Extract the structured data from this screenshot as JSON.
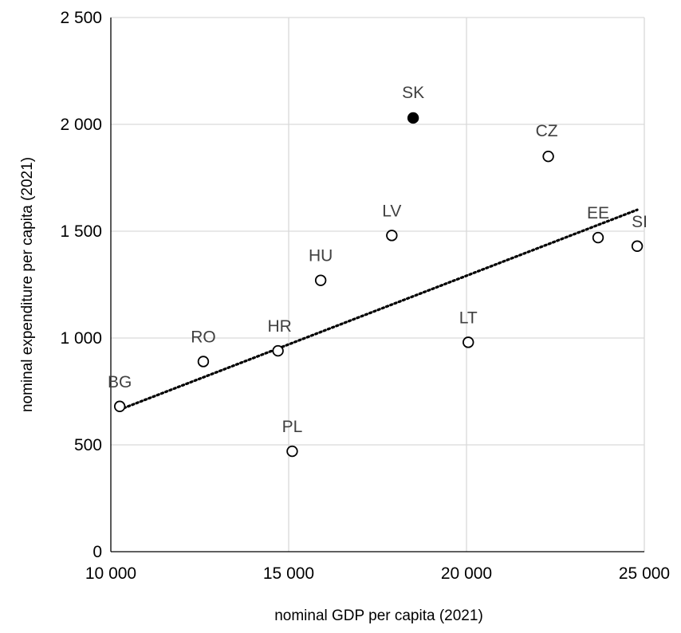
{
  "chart_data": {
    "type": "scatter",
    "xlabel": "nominal GDP per capita (2021)",
    "ylabel": "nominal expenditure per capita (2021)",
    "xlim": [
      10000,
      25000
    ],
    "ylim": [
      0,
      2500
    ],
    "x_ticks": [
      10000,
      15000,
      20000,
      25000
    ],
    "x_tick_labels": [
      "10 000",
      "15 000",
      "20 000",
      "25 000"
    ],
    "y_ticks": [
      0,
      500,
      1000,
      1500,
      2000,
      2500
    ],
    "y_tick_labels": [
      "0",
      "500",
      "1 000",
      "1 500",
      "2 000",
      "2 500"
    ],
    "grid": true,
    "points": [
      {
        "label": "BG",
        "x": 10250,
        "y": 680,
        "highlight": false
      },
      {
        "label": "RO",
        "x": 12600,
        "y": 890,
        "highlight": false
      },
      {
        "label": "HR",
        "x": 14700,
        "y": 940,
        "highlight": false
      },
      {
        "label": "PL",
        "x": 15100,
        "y": 470,
        "highlight": false
      },
      {
        "label": "HU",
        "x": 15900,
        "y": 1270,
        "highlight": false
      },
      {
        "label": "LV",
        "x": 17900,
        "y": 1480,
        "highlight": false
      },
      {
        "label": "SK",
        "x": 18500,
        "y": 2030,
        "highlight": true
      },
      {
        "label": "LT",
        "x": 20050,
        "y": 980,
        "highlight": false
      },
      {
        "label": "CZ",
        "x": 22300,
        "y": 1850,
        "highlight": false
      },
      {
        "label": "EE",
        "x": 23700,
        "y": 1470,
        "highlight": false
      },
      {
        "label": "SI",
        "x": 24800,
        "y": 1430,
        "highlight": false
      }
    ],
    "trendline": {
      "style": "dotted",
      "x": [
        10250,
        24800
      ],
      "y": [
        665,
        1600
      ]
    },
    "colors": {
      "marker_stroke": "#000000",
      "marker_fill": "#ffffff",
      "highlight_fill": "#000000",
      "label_text": "#404040",
      "grid": "#d9d9d9"
    }
  }
}
